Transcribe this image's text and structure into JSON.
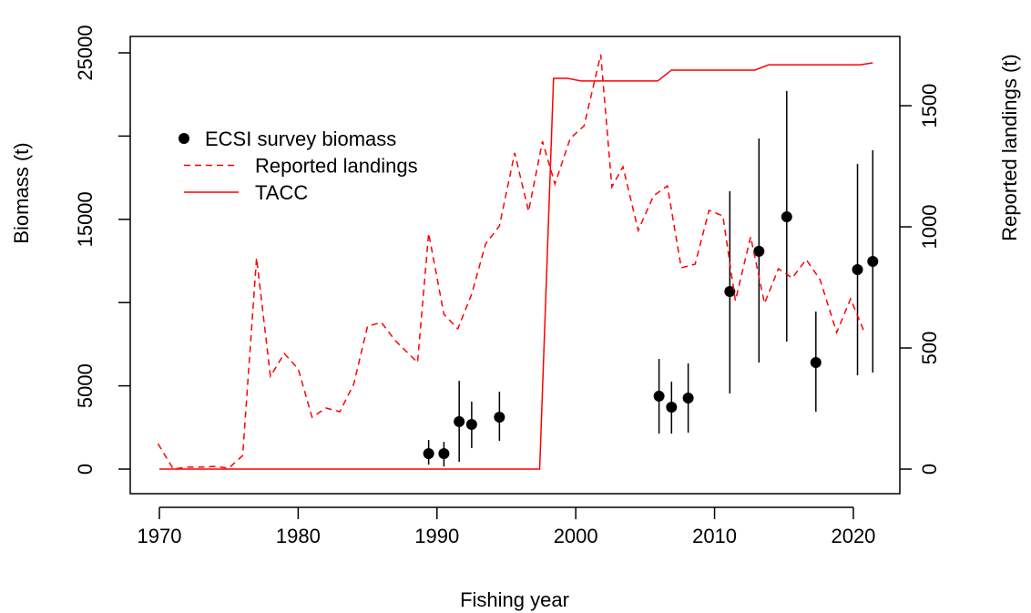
{
  "chart_data": {
    "type": "line",
    "xlabel": "Fishing year",
    "ylabel": "Biomass (t)",
    "y2label": "Reported landings (t)",
    "xlim": [
      1967.9,
      2023.35
    ],
    "xticks": [
      1970,
      1980,
      1990,
      2000,
      2010,
      2020
    ],
    "ylim": [
      -1477,
      25985
    ],
    "yticks": [
      0,
      5000,
      {
        "value": 10000,
        "label": null
      },
      15000,
      {
        "value": 20000,
        "label": null
      },
      25000
    ],
    "y2lim": [
      -101.5,
      1786
    ],
    "y2ticks": [
      0,
      500,
      1000,
      1500
    ],
    "legend": "topleft",
    "series": [
      {
        "name": "ECSI survey biomass",
        "style": "points",
        "color": "#000000",
        "axis": "y",
        "x": [
          1989.4,
          1990.5,
          1991.6,
          1992.5,
          1994.5,
          2006.0,
          2006.9,
          2008.1,
          2011.1,
          2013.2,
          2015.2,
          2017.3,
          2020.3,
          2021.4
        ],
        "values": [
          930,
          930,
          2850,
          2680,
          3120,
          4380,
          3720,
          4270,
          10670,
          13080,
          15150,
          6400,
          11980,
          12470
        ],
        "lower": [
          270,
          160,
          440,
          1260,
          1700,
          2130,
          2130,
          2190,
          4540,
          6400,
          7660,
          3450,
          5630,
          5800
        ],
        "upper": [
          1750,
          1640,
          5300,
          4050,
          4650,
          6620,
          5250,
          6350,
          16690,
          19860,
          22700,
          9460,
          18330,
          19150
        ]
      },
      {
        "name": "Reported landings",
        "style": "dashed",
        "color": "#ff0000",
        "axis": "y2",
        "x": [
          1969.9,
          1971,
          1972,
          1973,
          1974,
          1975,
          1976,
          1977,
          1978,
          1979,
          1980,
          1981,
          1982,
          1983,
          1984,
          1985,
          1986,
          1987,
          1988.6,
          1989.4,
          1990.5,
          1991.5,
          1992.5,
          1993.5,
          1994.5,
          1995.6,
          1996.6,
          1997.6,
          1998.5,
          1999.6,
          2000.6,
          2001.8,
          2002.6,
          2003.4,
          2004.5,
          2005.6,
          2006.6,
          2007.6,
          2008.6,
          2009.6,
          2010.6,
          2011.5,
          2012.6,
          2013.6,
          2014.6,
          2015.6,
          2016.6,
          2017.6,
          2018.8,
          2019.8,
          2020.8
        ],
        "values": [
          105,
          0,
          8,
          8,
          11,
          4,
          56,
          872,
          383,
          477,
          414,
          214,
          252,
          237,
          350,
          590,
          605,
          530,
          440,
          974,
          639,
          579,
          722,
          929,
          1004,
          1305,
          1064,
          1353,
          1177,
          1365,
          1417,
          1711,
          1165,
          1248,
          985,
          1128,
          1169,
          831,
          846,
          1068,
          1045,
          695,
          959,
          684,
          827,
          789,
          865,
          782,
          564,
          703,
          564
        ]
      },
      {
        "name": "TACC",
        "style": "solid",
        "color": "#ff0000",
        "axis": "y2",
        "x": [
          1970,
          1997.4,
          1998.4,
          1999.4,
          2000.4,
          2005.9,
          2006.9,
          2012.9,
          2013.9,
          2020.5,
          2021.4
        ],
        "values": [
          0,
          0,
          1613,
          1613,
          1602,
          1602,
          1647,
          1647,
          1669,
          1669,
          1677
        ]
      }
    ]
  }
}
